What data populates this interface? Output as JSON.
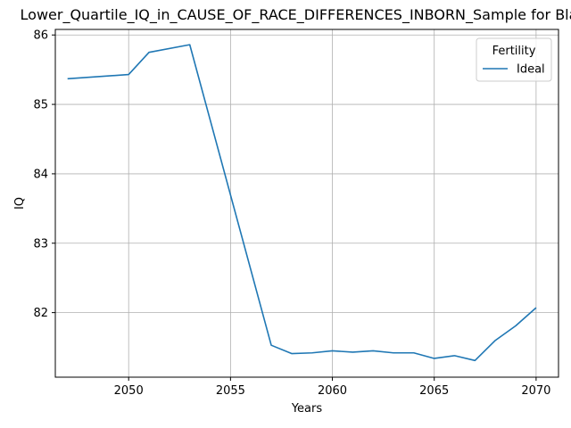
{
  "chart_data": {
    "type": "line",
    "title": "Lower_Quartile_IQ_in_CAUSE_OF_RACE_DIFFERENCES_INBORN_Sample for Black",
    "xlabel": "Years",
    "ylabel": "IQ",
    "xlim": [
      2046.4,
      2071.1
    ],
    "ylim": [
      81.07,
      86.08
    ],
    "xticks": [
      2050,
      2055,
      2060,
      2065,
      2070
    ],
    "yticks": [
      82,
      83,
      84,
      85,
      86
    ],
    "grid": true,
    "legend": {
      "title": "Fertility",
      "position": "top-right"
    },
    "series": [
      {
        "name": "Ideal",
        "color": "#1f77b4",
        "x": [
          2047,
          2050,
          2051,
          2053,
          2057,
          2058,
          2059,
          2060,
          2061,
          2062,
          2063,
          2064,
          2065,
          2066,
          2067,
          2068,
          2069,
          2070
        ],
        "y": [
          85.37,
          85.43,
          85.75,
          85.86,
          81.53,
          81.41,
          81.42,
          81.45,
          81.43,
          81.45,
          81.42,
          81.42,
          81.34,
          81.38,
          81.31,
          81.6,
          81.81,
          82.07
        ]
      }
    ]
  }
}
